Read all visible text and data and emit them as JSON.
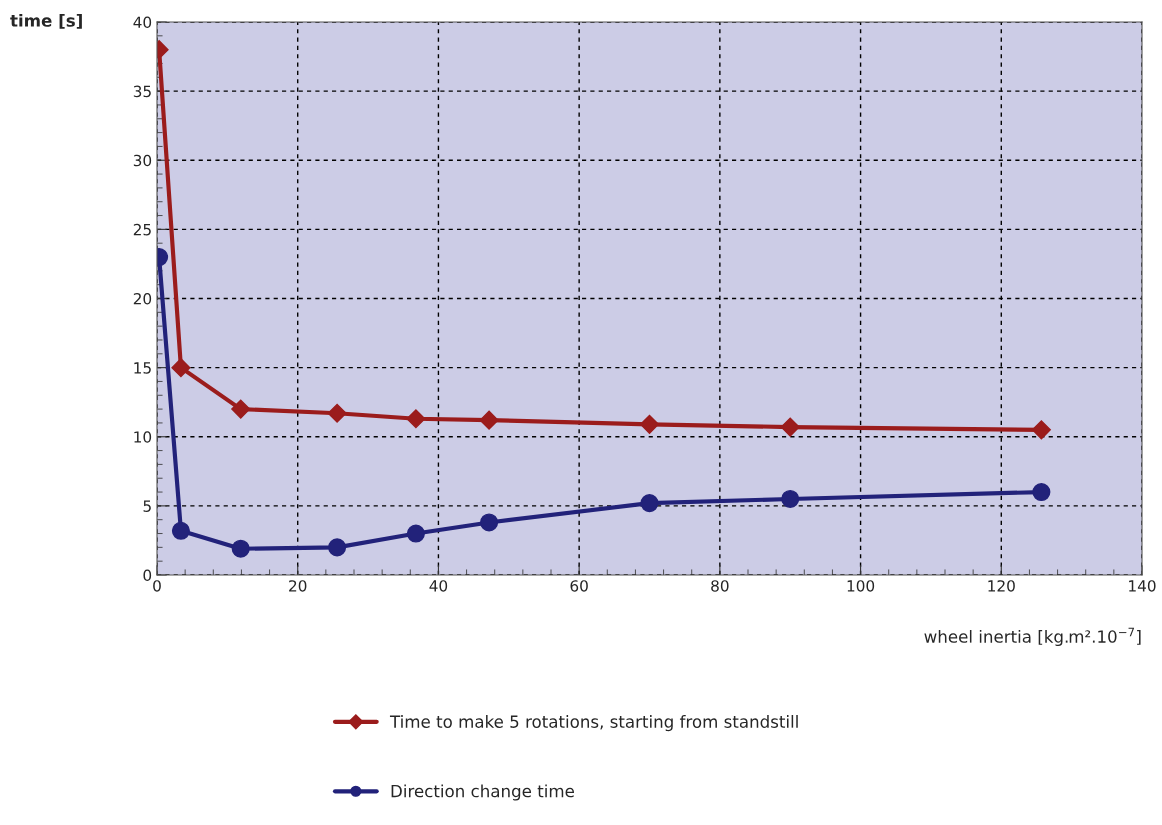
{
  "chart_data": {
    "type": "line",
    "xlabel": "wheel inertia [kg.m².10$^{−7}$]",
    "ylabel": "time [s]",
    "x": [
      0.3,
      3.4,
      11.9,
      25.6,
      36.8,
      47.2,
      70,
      90,
      125.7
    ],
    "series": [
      {
        "name": "Time to make 5 rotations, starting from standstill",
        "color": "#9b1c1c",
        "marker": "diamond",
        "values": [
          38.0,
          15.0,
          12.0,
          11.7,
          11.3,
          11.2,
          10.9,
          10.7,
          10.5
        ]
      },
      {
        "name": "Direction change time",
        "color": "#22227a",
        "marker": "circle",
        "values": [
          23.0,
          3.2,
          1.9,
          2.0,
          3.0,
          3.8,
          5.2,
          5.5,
          6.0
        ]
      }
    ],
    "xlim": [
      0,
      140
    ],
    "xticks": [
      0,
      20,
      40,
      60,
      80,
      100,
      120,
      140
    ],
    "ylim": [
      0,
      40
    ],
    "yticks": [
      0,
      5,
      10,
      15,
      20,
      25,
      30,
      35,
      40
    ],
    "grid": true,
    "legend": "bottom",
    "line_style": "solid"
  }
}
